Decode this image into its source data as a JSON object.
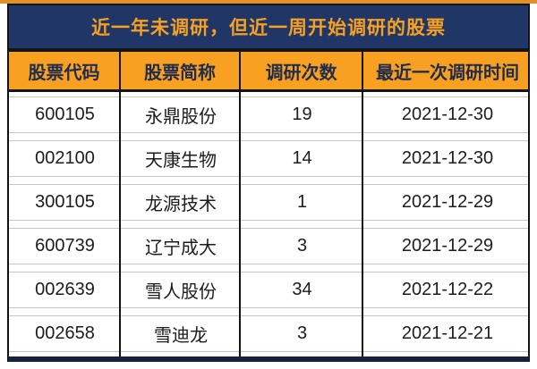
{
  "chart_data": {
    "type": "table",
    "title": "近一年未调研，但近一周开始调研的股票",
    "columns": [
      "股票代码",
      "股票简称",
      "调研次数",
      "最近一次调研时间"
    ],
    "rows": [
      [
        "600105",
        "永鼎股份",
        "19",
        "2021-12-30"
      ],
      [
        "002100",
        "天康生物",
        "14",
        "2021-12-30"
      ],
      [
        "300105",
        "龙源技术",
        "1",
        "2021-12-29"
      ],
      [
        "600739",
        "辽宁成大",
        "3",
        "2021-12-29"
      ],
      [
        "002639",
        "雪人股份",
        "34",
        "2021-12-22"
      ],
      [
        "002658",
        "雪迪龙",
        "3",
        "2021-12-21"
      ]
    ]
  },
  "colors": {
    "navy": "#1f3666",
    "orange": "#f7a021",
    "border_black": "#141414",
    "row_hairline": "#c6c6c6",
    "bottom_rule": "#16213f",
    "data_text": "#1c1c1c",
    "background": "#ffffff"
  }
}
